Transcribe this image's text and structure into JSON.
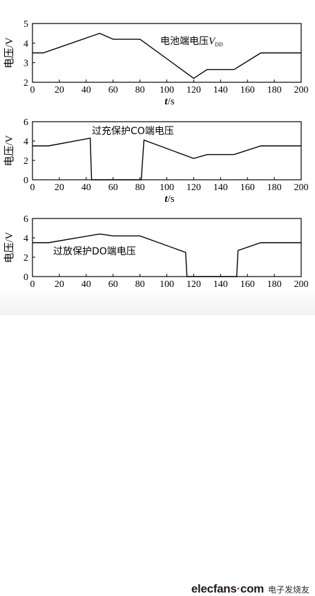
{
  "chart_data": [
    {
      "type": "line",
      "title": "",
      "annotation": "电池端电压",
      "annotation_var": "V",
      "annotation_sub": "DD",
      "xlabel_var": "t",
      "xlabel_unit": "/s",
      "ylabel": "电压/V",
      "xlim": [
        0,
        200
      ],
      "ylim": [
        2,
        5
      ],
      "xticks": [
        0,
        20,
        40,
        60,
        80,
        100,
        120,
        140,
        160,
        180,
        200
      ],
      "yticks": [
        2,
        3,
        4,
        5
      ],
      "series": [
        {
          "x": [
            0,
            8,
            50,
            60,
            80,
            120,
            130,
            150,
            170,
            200
          ],
          "y": [
            3.5,
            3.5,
            4.5,
            4.2,
            4.2,
            2.2,
            2.65,
            2.65,
            3.5,
            3.5
          ]
        }
      ]
    },
    {
      "type": "line",
      "title": "",
      "annotation": "过充保护CO端电压",
      "xlabel_var": "t",
      "xlabel_unit": "/s",
      "ylabel": "电压/V",
      "xlim": [
        0,
        200
      ],
      "ylim": [
        0,
        6
      ],
      "xticks": [
        0,
        20,
        40,
        60,
        80,
        100,
        120,
        140,
        160,
        180,
        200
      ],
      "yticks": [
        0,
        2,
        4,
        6
      ],
      "series": [
        {
          "x": [
            0,
            12,
            43,
            44,
            81,
            83,
            120,
            130,
            150,
            170,
            200
          ],
          "y": [
            3.5,
            3.5,
            4.3,
            0,
            0,
            4.1,
            2.2,
            2.6,
            2.6,
            3.5,
            3.5
          ]
        }
      ]
    },
    {
      "type": "line",
      "title": "",
      "annotation": "过放保护DO端电压",
      "xlabel_var": "t",
      "xlabel_unit": "/s",
      "ylabel": "电压/V",
      "xlim": [
        0,
        200
      ],
      "ylim": [
        0,
        6
      ],
      "xticks": [
        0,
        20,
        40,
        60,
        80,
        100,
        120,
        140,
        160,
        180,
        200
      ],
      "yticks": [
        0,
        2,
        4,
        6
      ],
      "series": [
        {
          "x": [
            0,
            12,
            50,
            60,
            80,
            114,
            115,
            152,
            153,
            170,
            200
          ],
          "y": [
            3.5,
            3.5,
            4.4,
            4.2,
            4.2,
            2.5,
            0,
            0,
            2.7,
            3.5,
            3.5
          ]
        }
      ]
    }
  ],
  "watermark": {
    "logo_main": "elecfans",
    "logo_dot": "·",
    "logo_tail": "com",
    "subtitle": "电子发烧友"
  }
}
